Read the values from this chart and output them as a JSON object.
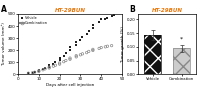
{
  "title": "HT-29BUN",
  "title_color": "#E8770A",
  "panel_a": {
    "xlabel": "Days after cell injection",
    "ylabel": "Tumor volume (mm³)",
    "xlim": [
      0,
      50
    ],
    "ylim": [
      0,
      500
    ],
    "yticks": [
      0,
      100,
      200,
      300,
      400,
      500
    ],
    "xticks": [
      0,
      10,
      20,
      30,
      40,
      50
    ],
    "vehicle_x": [
      5,
      7,
      8,
      10,
      10,
      12,
      13,
      15,
      15,
      17,
      18,
      20,
      20,
      22,
      23,
      25,
      25,
      28,
      28,
      30,
      31,
      33,
      34,
      36,
      36,
      39,
      40,
      42,
      43,
      45,
      46
    ],
    "vehicle_y": [
      10,
      15,
      20,
      28,
      35,
      45,
      55,
      65,
      75,
      90,
      105,
      120,
      138,
      155,
      175,
      200,
      225,
      245,
      265,
      285,
      310,
      335,
      360,
      385,
      410,
      435,
      455,
      460,
      470,
      480,
      490
    ],
    "combo_x": [
      5,
      7,
      8,
      10,
      10,
      12,
      13,
      15,
      15,
      17,
      18,
      20,
      20,
      22,
      23,
      25,
      25,
      28,
      28,
      30,
      31,
      33,
      34,
      36,
      36,
      39,
      40,
      42,
      43,
      45
    ],
    "combo_y": [
      10,
      14,
      18,
      24,
      30,
      38,
      46,
      53,
      60,
      68,
      76,
      85,
      95,
      105,
      115,
      125,
      135,
      145,
      155,
      162,
      170,
      180,
      190,
      198,
      207,
      215,
      222,
      228,
      233,
      238
    ]
  },
  "panel_b": {
    "title": "HT-29BUN",
    "ylabel": "Tumor growth (%)",
    "categories": [
      "Vehicle",
      "Combination"
    ],
    "values": [
      0.145,
      0.095
    ],
    "errors": [
      0.018,
      0.013
    ],
    "ylim": [
      0.0,
      0.22
    ],
    "yticks": [
      0.0,
      0.05,
      0.1,
      0.15,
      0.2
    ],
    "ytick_labels": [
      "0.00",
      "0.05",
      "0.10",
      "0.15",
      "0.20"
    ]
  }
}
